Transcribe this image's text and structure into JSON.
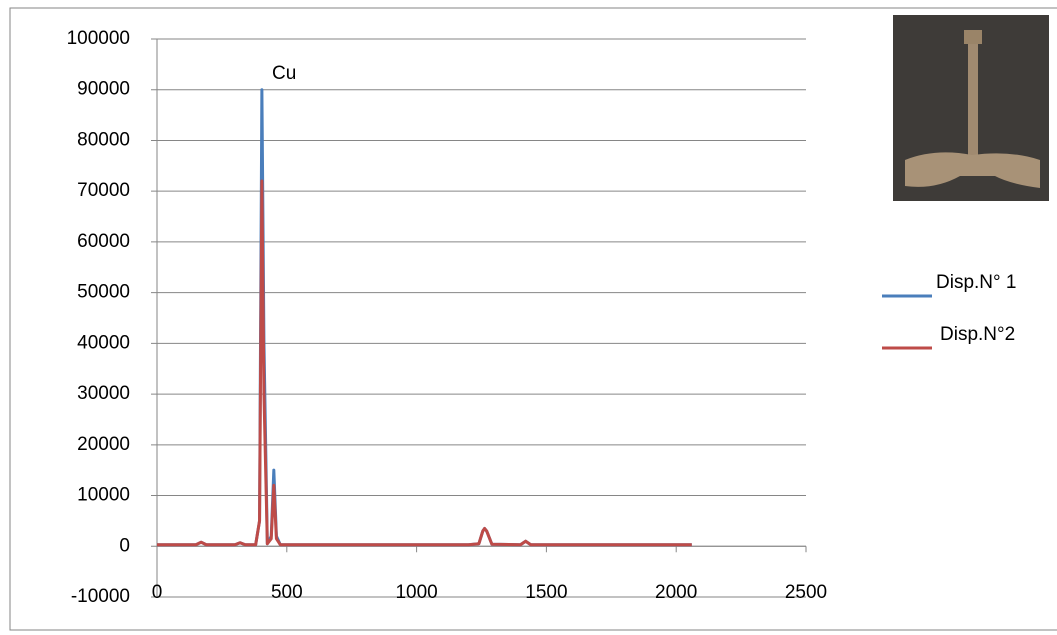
{
  "chart_data": {
    "type": "line",
    "annotation": "Cu",
    "x": [
      0,
      150,
      170,
      190,
      300,
      320,
      340,
      380,
      395,
      404,
      412,
      425,
      440,
      450,
      460,
      475,
      500,
      800,
      1200,
      1240,
      1255,
      1262,
      1270,
      1290,
      1400,
      1420,
      1440,
      1800,
      2060
    ],
    "series": [
      {
        "name": "Disp.N° 1",
        "color": "#4a7ebb",
        "values": [
          300,
          300,
          800,
          300,
          300,
          700,
          300,
          300,
          5000,
          90000,
          40000,
          500,
          2000,
          15000,
          2000,
          300,
          300,
          300,
          300,
          500,
          3000,
          3500,
          3000,
          400,
          300,
          1000,
          300,
          300,
          300
        ]
      },
      {
        "name": "Disp.N°2",
        "color": "#be4b48",
        "values": [
          300,
          300,
          800,
          300,
          300,
          700,
          300,
          300,
          5000,
          72000,
          30000,
          500,
          1500,
          12000,
          1500,
          300,
          300,
          300,
          300,
          500,
          3000,
          3500,
          3000,
          400,
          300,
          1000,
          300,
          300,
          300
        ]
      }
    ],
    "xlim": [
      0,
      2500
    ],
    "xticks": [
      0,
      500,
      1000,
      1500,
      2000,
      2500
    ],
    "ylim": [
      -10000,
      100000
    ],
    "yticks": [
      -10000,
      0,
      10000,
      20000,
      30000,
      40000,
      50000,
      60000,
      70000,
      80000,
      90000,
      100000
    ],
    "grid": true,
    "legend": "right"
  }
}
